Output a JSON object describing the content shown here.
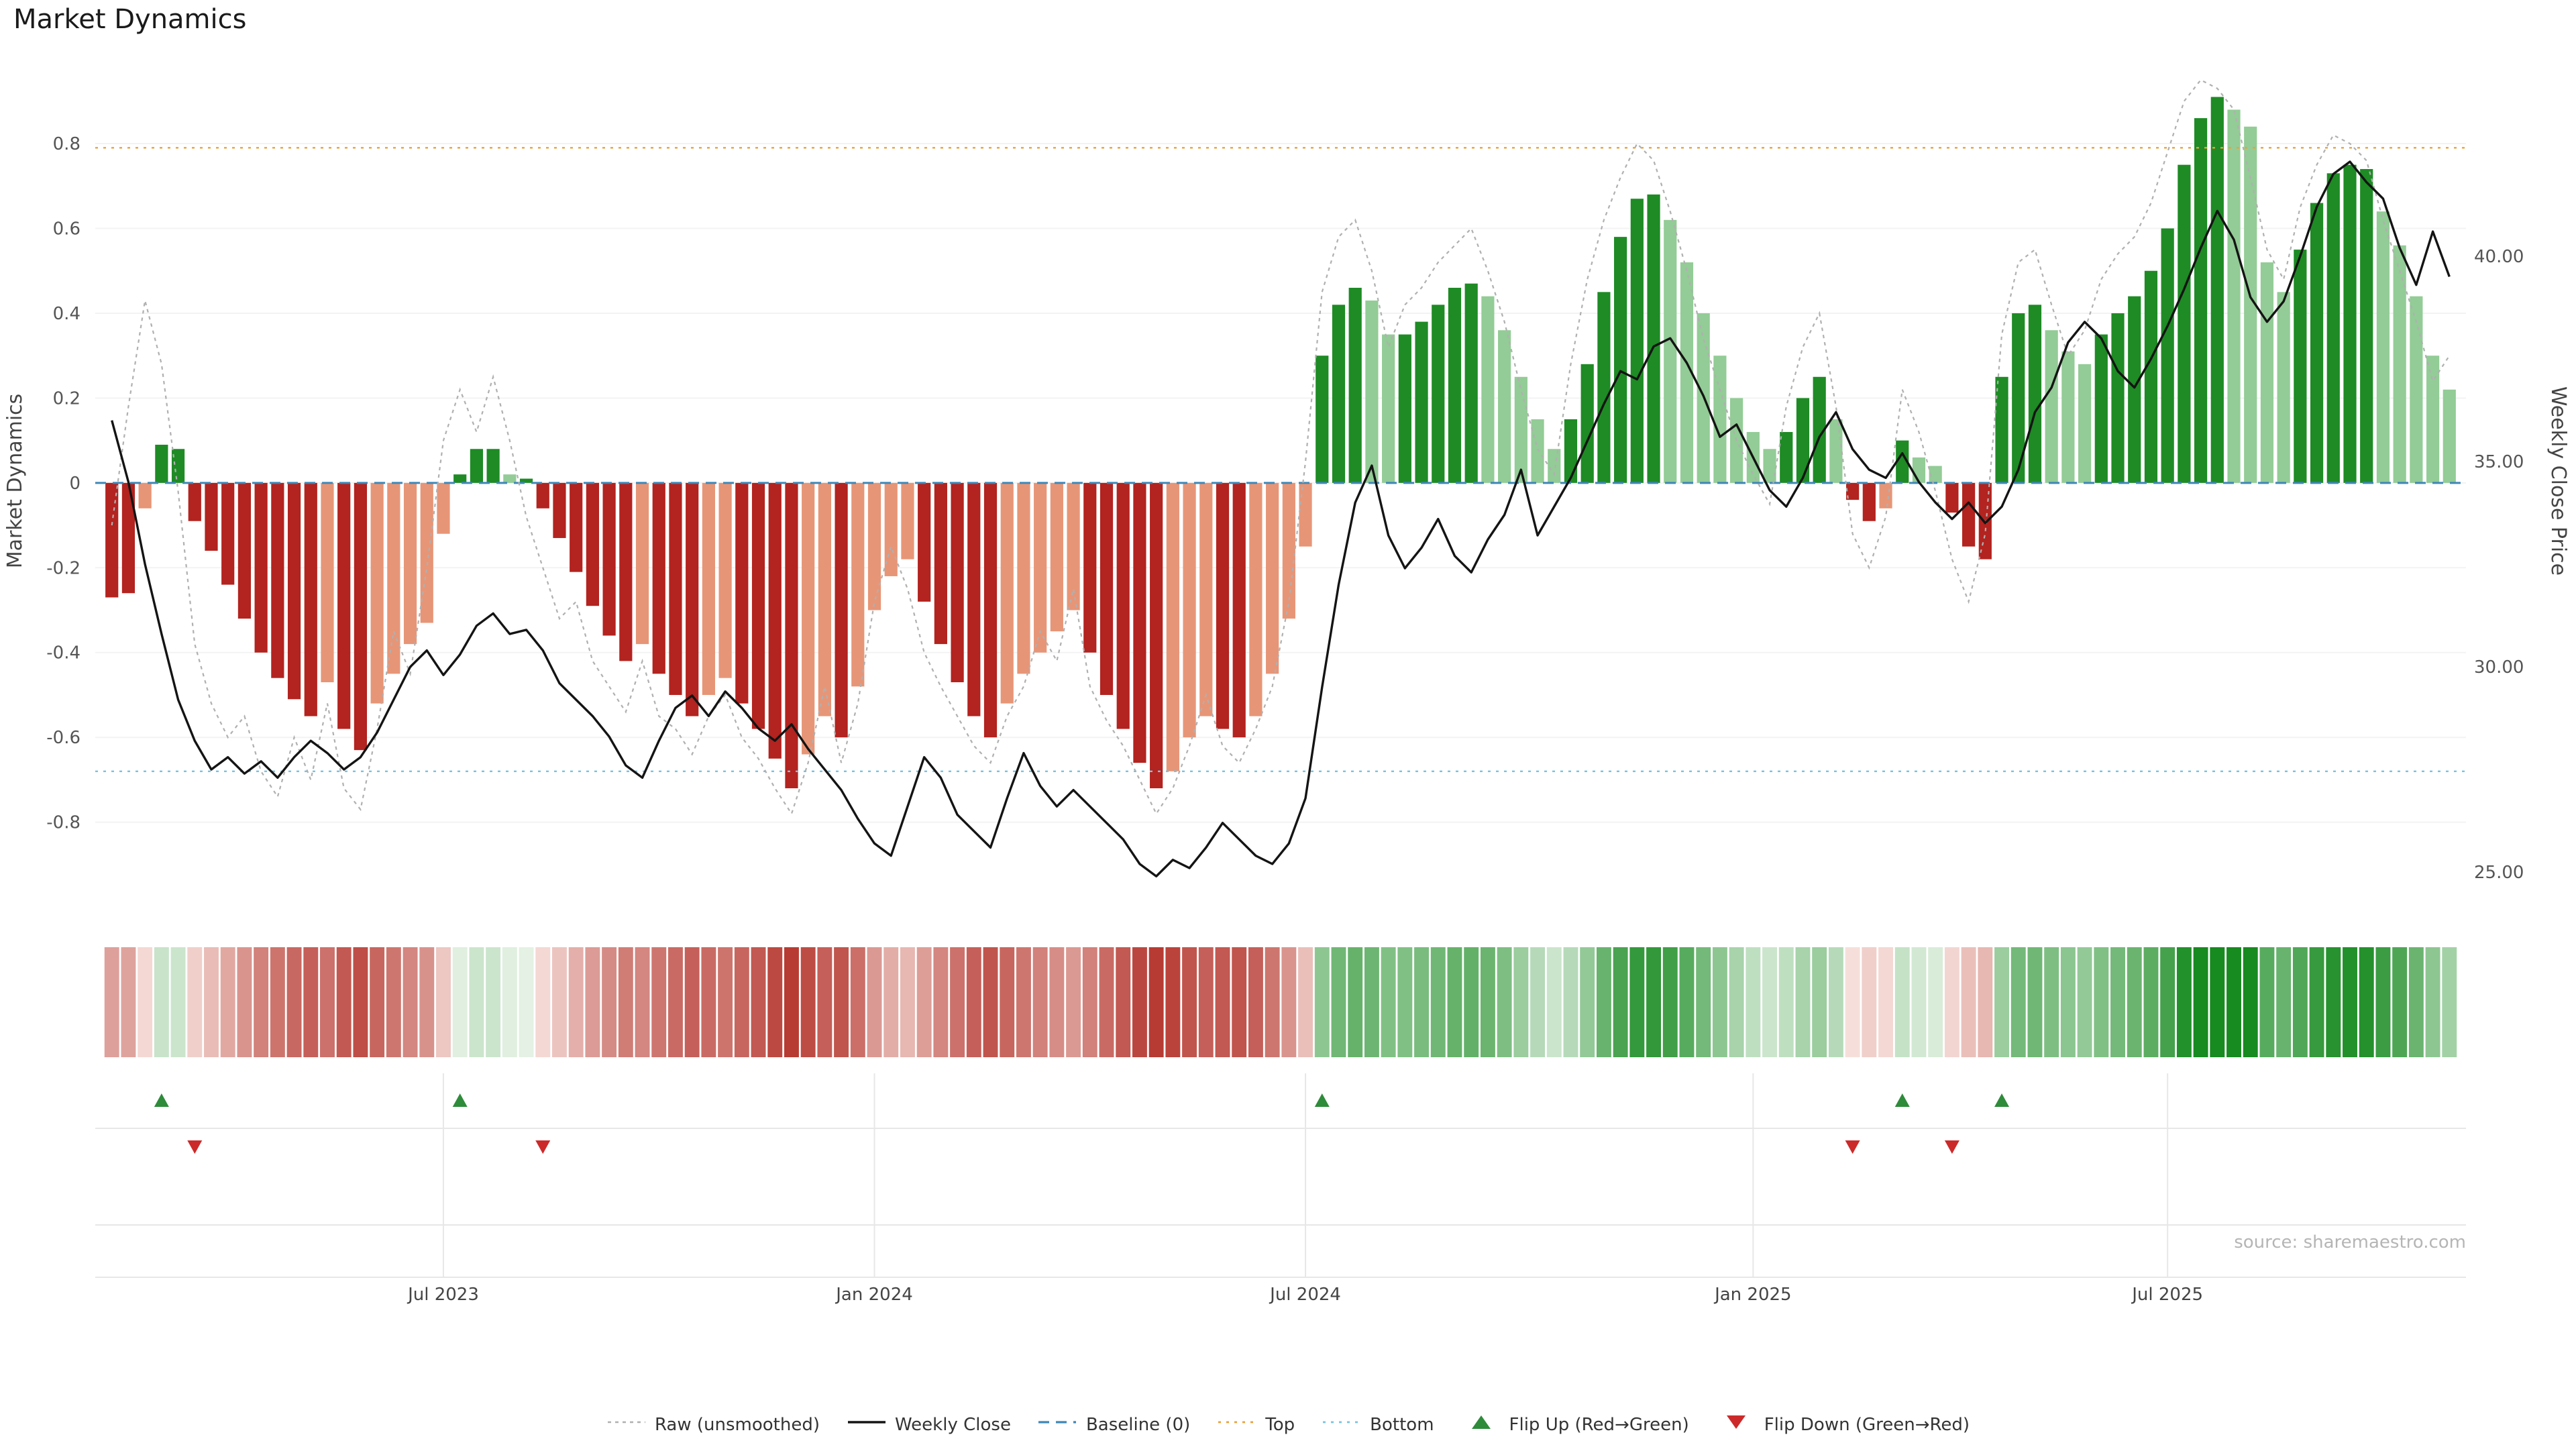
{
  "title": "Market Dynamics",
  "source": "source: sharemaestro.com",
  "colors": {
    "bar_pos_strong": "#1e8b25",
    "bar_pos_weak": "#93cc96",
    "bar_neg_strong": "#b3231f",
    "bar_neg_weak": "#e79577",
    "close_line": "#141414",
    "raw_line": "#b0b0b0",
    "baseline_line": "#3f87b8",
    "top_line": "#e9a23b",
    "bottom_line": "#7ac4e0",
    "flip_up": "#2e8b3a",
    "flip_down": "#cc2a2a",
    "heat_pos_weak": "#e9f4e9",
    "heat_pos_strong": "#178a20",
    "heat_neg_weak": "#fceeea",
    "heat_neg_strong": "#b02a22",
    "grid": "#f3f3f3",
    "band_grid": "#e7e7e7",
    "tick_text": "#555555"
  },
  "chart_data": {
    "type": "bar",
    "subtype": "oscillator bars + overlaid lines + flip heatmap strip",
    "title": "Market Dynamics",
    "ylabel_left": "Market Dynamics",
    "ylabel_right": "Weekly Close Price",
    "y_left": {
      "lim": [
        -1.003,
        1.012
      ],
      "ticks": [
        {
          "v": 0.8,
          "label": "0.8"
        },
        {
          "v": 0.6,
          "label": "0.6"
        },
        {
          "v": 0.4,
          "label": "0.4"
        },
        {
          "v": 0.2,
          "label": "0.2"
        },
        {
          "v": 0.0,
          "label": "0"
        },
        {
          "v": -0.2,
          "label": "-0.2"
        },
        {
          "v": -0.4,
          "label": "-0.4"
        },
        {
          "v": -0.6,
          "label": "-0.6"
        },
        {
          "v": -0.8,
          "label": "-0.8"
        }
      ]
    },
    "y_right": {
      "lim": [
        24.12,
        44.93
      ],
      "ticks": [
        {
          "v": 40,
          "label": "40.00"
        },
        {
          "v": 35,
          "label": "35.00"
        },
        {
          "v": 30,
          "label": "30.00"
        },
        {
          "v": 25,
          "label": "25.00"
        }
      ]
    },
    "x_ticks": [
      {
        "week": 20,
        "label": "Jul 2023"
      },
      {
        "week": 46,
        "label": "Jan 2024"
      },
      {
        "week": 72,
        "label": "Jul 2024"
      },
      {
        "week": 99,
        "label": "Jan 2025"
      },
      {
        "week": 124,
        "label": "Jul 2025"
      }
    ],
    "thresholds": {
      "baseline": 0.0,
      "top": 0.79,
      "bottom": -0.68
    },
    "series": {
      "dynamics": [
        -0.27,
        -0.26,
        -0.06,
        0.09,
        0.08,
        -0.09,
        -0.16,
        -0.24,
        -0.32,
        -0.4,
        -0.46,
        -0.51,
        -0.55,
        -0.47,
        -0.58,
        -0.63,
        -0.52,
        -0.45,
        -0.38,
        -0.33,
        -0.12,
        0.02,
        0.08,
        0.08,
        0.02,
        0.01,
        -0.06,
        -0.13,
        -0.21,
        -0.29,
        -0.36,
        -0.42,
        -0.38,
        -0.45,
        -0.5,
        -0.55,
        -0.5,
        -0.46,
        -0.52,
        -0.58,
        -0.65,
        -0.72,
        -0.64,
        -0.55,
        -0.6,
        -0.48,
        -0.3,
        -0.22,
        -0.18,
        -0.28,
        -0.38,
        -0.47,
        -0.55,
        -0.6,
        -0.52,
        -0.45,
        -0.4,
        -0.35,
        -0.3,
        -0.4,
        -0.5,
        -0.58,
        -0.66,
        -0.72,
        -0.68,
        -0.6,
        -0.55,
        -0.58,
        -0.6,
        -0.55,
        -0.45,
        -0.32,
        -0.15,
        0.3,
        0.42,
        0.46,
        0.43,
        0.35,
        0.35,
        0.38,
        0.42,
        0.46,
        0.47,
        0.44,
        0.36,
        0.25,
        0.15,
        0.08,
        0.15,
        0.28,
        0.45,
        0.58,
        0.67,
        0.68,
        0.62,
        0.52,
        0.4,
        0.3,
        0.2,
        0.12,
        0.08,
        0.12,
        0.2,
        0.25,
        0.15,
        -0.04,
        -0.09,
        -0.06,
        0.1,
        0.06,
        0.04,
        -0.07,
        -0.15,
        -0.18,
        0.25,
        0.4,
        0.42,
        0.36,
        0.31,
        0.28,
        0.35,
        0.4,
        0.44,
        0.5,
        0.6,
        0.75,
        0.86,
        0.91,
        0.88,
        0.84,
        0.52,
        0.45,
        0.55,
        0.66,
        0.73,
        0.75,
        0.74,
        0.64,
        0.56,
        0.44,
        0.3,
        0.22
      ],
      "raw": [
        -0.1,
        0.18,
        0.43,
        0.28,
        -0.02,
        -0.38,
        -0.52,
        -0.6,
        -0.55,
        -0.68,
        -0.74,
        -0.6,
        -0.7,
        -0.52,
        -0.72,
        -0.77,
        -0.58,
        -0.35,
        -0.45,
        -0.2,
        0.1,
        0.22,
        0.12,
        0.25,
        0.1,
        -0.08,
        -0.2,
        -0.32,
        -0.28,
        -0.42,
        -0.48,
        -0.54,
        -0.42,
        -0.55,
        -0.58,
        -0.64,
        -0.55,
        -0.5,
        -0.6,
        -0.65,
        -0.72,
        -0.78,
        -0.66,
        -0.48,
        -0.66,
        -0.52,
        -0.28,
        -0.15,
        -0.25,
        -0.4,
        -0.48,
        -0.55,
        -0.62,
        -0.66,
        -0.55,
        -0.48,
        -0.35,
        -0.42,
        -0.25,
        -0.48,
        -0.56,
        -0.62,
        -0.7,
        -0.78,
        -0.72,
        -0.62,
        -0.5,
        -0.62,
        -0.66,
        -0.58,
        -0.48,
        -0.28,
        0.05,
        0.45,
        0.58,
        0.62,
        0.5,
        0.32,
        0.42,
        0.46,
        0.52,
        0.56,
        0.6,
        0.5,
        0.38,
        0.22,
        0.08,
        0.02,
        0.28,
        0.48,
        0.62,
        0.72,
        0.8,
        0.76,
        0.64,
        0.5,
        0.34,
        0.22,
        0.1,
        0.02,
        -0.05,
        0.18,
        0.32,
        0.4,
        0.18,
        -0.12,
        -0.2,
        -0.08,
        0.22,
        0.12,
        -0.02,
        -0.18,
        -0.28,
        -0.12,
        0.35,
        0.52,
        0.55,
        0.42,
        0.3,
        0.36,
        0.48,
        0.54,
        0.58,
        0.66,
        0.78,
        0.9,
        0.95,
        0.93,
        0.88,
        0.72,
        0.55,
        0.48,
        0.65,
        0.75,
        0.82,
        0.8,
        0.76,
        0.62,
        0.5,
        0.38,
        0.24,
        0.3
      ],
      "close": [
        36.0,
        34.5,
        32.5,
        30.8,
        29.2,
        28.2,
        27.5,
        27.8,
        27.4,
        27.7,
        27.3,
        27.8,
        28.2,
        27.9,
        27.5,
        27.8,
        28.4,
        29.2,
        30.0,
        30.4,
        29.8,
        30.3,
        31.0,
        31.3,
        30.8,
        30.9,
        30.4,
        29.6,
        29.2,
        28.8,
        28.3,
        27.6,
        27.3,
        28.2,
        29.0,
        29.3,
        28.8,
        29.4,
        29.0,
        28.5,
        28.2,
        28.6,
        28.0,
        27.5,
        27.0,
        26.3,
        25.7,
        25.4,
        26.6,
        27.8,
        27.3,
        26.4,
        26.0,
        25.6,
        26.8,
        27.9,
        27.1,
        26.6,
        27.0,
        26.6,
        26.2,
        25.8,
        25.2,
        24.9,
        25.3,
        25.1,
        25.6,
        26.2,
        25.8,
        25.4,
        25.2,
        25.7,
        26.8,
        29.5,
        32.0,
        34.0,
        34.9,
        33.2,
        32.4,
        32.9,
        33.6,
        32.7,
        32.3,
        33.1,
        33.7,
        34.8,
        33.2,
        33.9,
        34.6,
        35.5,
        36.4,
        37.2,
        37.0,
        37.8,
        38.0,
        37.4,
        36.6,
        35.6,
        35.9,
        35.1,
        34.3,
        33.9,
        34.6,
        35.6,
        36.2,
        35.3,
        34.8,
        34.6,
        35.2,
        34.5,
        34.0,
        33.6,
        34.0,
        33.5,
        33.9,
        34.8,
        36.2,
        36.8,
        37.9,
        38.4,
        38.0,
        37.2,
        36.8,
        37.5,
        38.3,
        39.2,
        40.2,
        41.1,
        40.4,
        39.0,
        38.4,
        38.9,
        40.0,
        41.2,
        42.0,
        42.3,
        41.8,
        41.4,
        40.2,
        39.3,
        40.6,
        39.5
      ]
    }
  },
  "legend": {
    "items": [
      {
        "label": "Raw (unsmoothed)",
        "swatch": "raw-line"
      },
      {
        "label": "Weekly Close",
        "swatch": "close-line"
      },
      {
        "label": "Baseline (0)",
        "swatch": "baseline"
      },
      {
        "label": "Top",
        "swatch": "top"
      },
      {
        "label": "Bottom",
        "swatch": "bottom"
      },
      {
        "label": "Flip Up (Red→Green)",
        "swatch": "flip-up"
      },
      {
        "label": "Flip Down (Green→Red)",
        "swatch": "flip-down"
      }
    ]
  }
}
